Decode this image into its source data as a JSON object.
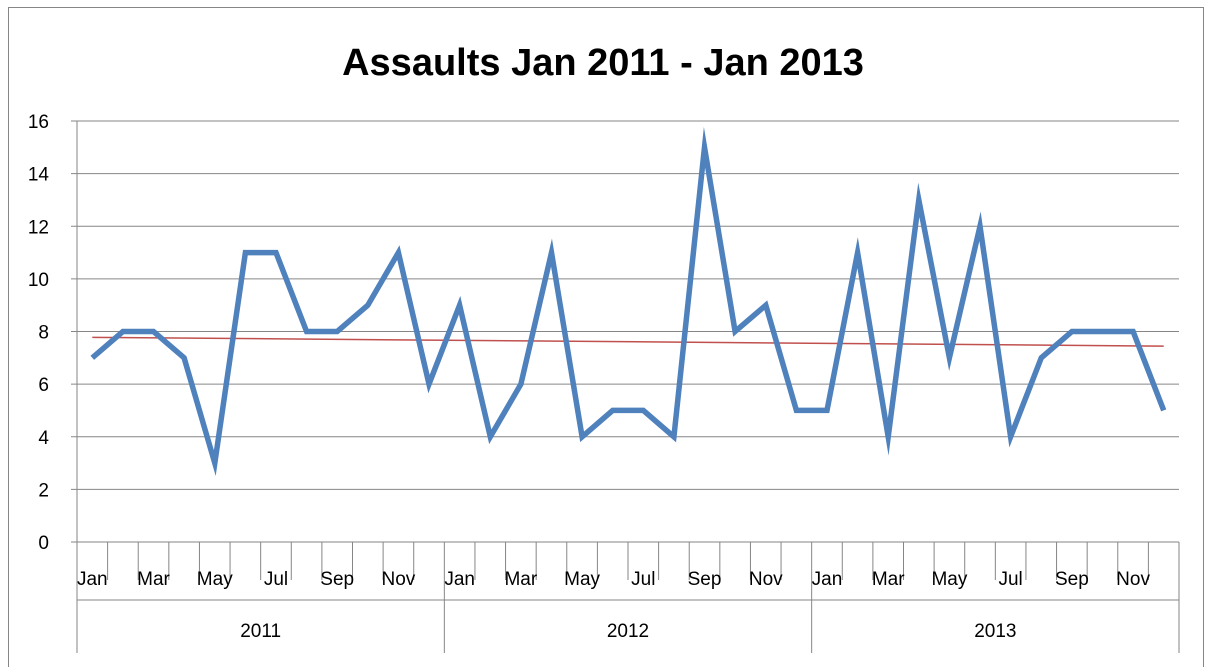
{
  "chart_data": {
    "type": "line",
    "title": "Assaults Jan 2011 - Jan 2013",
    "xlabel": "",
    "ylabel": "",
    "ylim": [
      0,
      16
    ],
    "yticks": [
      0,
      2,
      4,
      6,
      8,
      10,
      12,
      14,
      16
    ],
    "grid": true,
    "legend": "none",
    "years": [
      "2011",
      "2012",
      "2013"
    ],
    "month_tick_labels": [
      "Jan",
      "Mar",
      "May",
      "Jul",
      "Sep",
      "Nov"
    ],
    "series": [
      {
        "values": [
          7,
          8,
          8,
          7,
          3,
          11,
          11,
          8,
          8,
          9,
          11,
          6,
          9,
          4,
          6,
          11,
          4,
          5,
          5,
          4,
          15,
          8,
          9,
          5,
          5,
          11,
          4,
          13,
          7,
          12,
          4,
          7,
          8,
          8,
          8,
          5
        ],
        "color": "#4f81bd"
      }
    ],
    "trendline": {
      "type": "linear",
      "color": "#c0504d"
    }
  }
}
